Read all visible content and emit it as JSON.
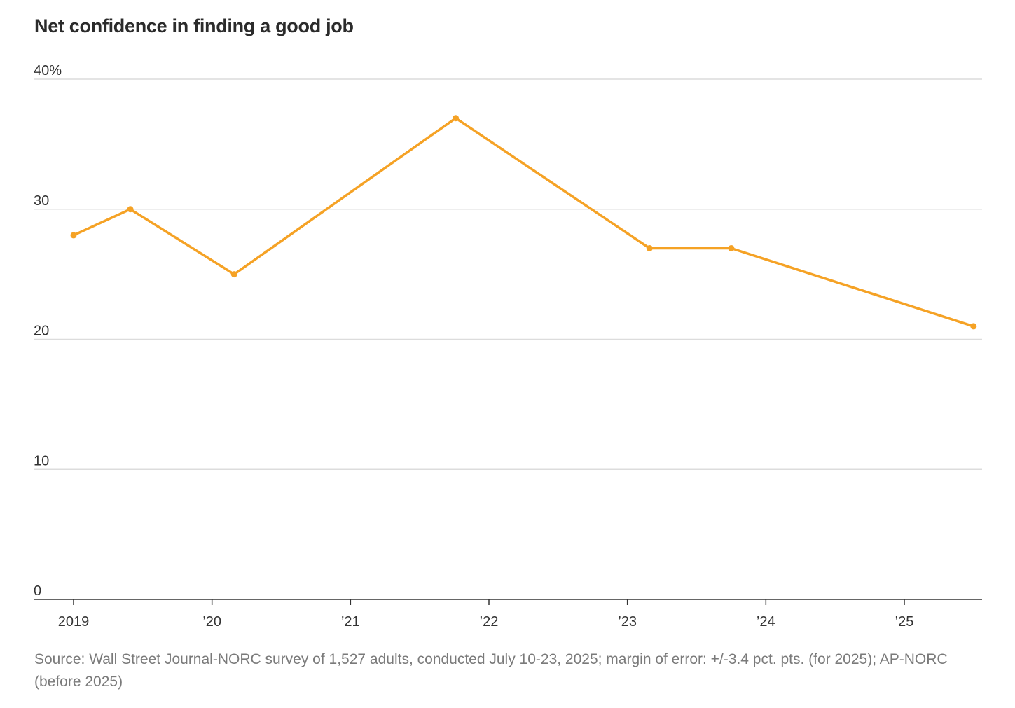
{
  "colors": {
    "line": "#F5A225",
    "grid": "#dcdcdc",
    "axis": "#333333",
    "title": "#2b2b2b",
    "source": "#7a7a7a"
  },
  "chart_data": {
    "type": "line",
    "title": "Net confidence in finding a good job",
    "xlabel": "",
    "ylabel": "",
    "ylim": [
      0,
      40
    ],
    "xlim": [
      2019.0,
      2025.55
    ],
    "grid": true,
    "yticks": [
      {
        "value": 0,
        "label": "0"
      },
      {
        "value": 10,
        "label": "10"
      },
      {
        "value": 20,
        "label": "20"
      },
      {
        "value": 30,
        "label": "30"
      },
      {
        "value": 40,
        "label": "40%"
      }
    ],
    "xticks": [
      {
        "value": 2019,
        "label": "2019"
      },
      {
        "value": 2020,
        "label": "’20"
      },
      {
        "value": 2021,
        "label": "’21"
      },
      {
        "value": 2022,
        "label": "’22"
      },
      {
        "value": 2023,
        "label": "’23"
      },
      {
        "value": 2024,
        "label": "’24"
      },
      {
        "value": 2025,
        "label": "’25"
      }
    ],
    "series": [
      {
        "name": "Net confidence in finding a good job",
        "x": [
          2019.0,
          2019.41,
          2020.16,
          2021.76,
          2023.16,
          2023.75,
          2025.5
        ],
        "values": [
          28,
          30,
          25,
          37,
          27,
          27,
          21
        ]
      }
    ]
  },
  "source": "Source: Wall Street Journal-NORC survey of 1,527 adults, conducted July 10-23, 2025; margin of error: +/-3.4 pct. pts. (for 2025); AP-NORC (before 2025)"
}
